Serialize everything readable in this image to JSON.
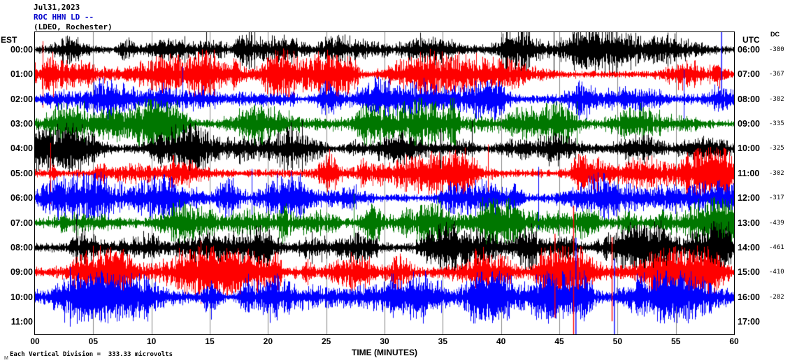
{
  "header": {
    "date": "Jul31,2023",
    "station": "ROC HHN LD --",
    "location": "(LDEO, Rochester)"
  },
  "axes": {
    "left_label": "EST",
    "right_label": "UTC",
    "dc_label": "DC",
    "x_label": "TIME (MINUTES)",
    "x_ticks": [
      "00",
      "05",
      "10",
      "15",
      "20",
      "25",
      "30",
      "35",
      "40",
      "45",
      "50",
      "55",
      "60"
    ]
  },
  "footer": {
    "scale_note": "Each Vertical Division =  333.33 microvolts",
    "corner_mark": "M"
  },
  "colors": {
    "black": "#000000",
    "red": "#ff0000",
    "blue": "#0000ff",
    "green": "#007700",
    "station_text": "#0000cc",
    "grid": "#555555"
  },
  "chart_data": {
    "type": "line",
    "description": "Helicorder seismogram: 11 hourly traces of continuous seismic noise, one row per hour, colors cycling black/red/blue/green",
    "title": "ROC HHN LD -- (LDEO, Rochester) Jul31,2023",
    "xlabel": "TIME (MINUTES)",
    "x_range_minutes": [
      0,
      60
    ],
    "x_tick_step_minutes": 5,
    "vertical_division_microvolts": 333.33,
    "rows": [
      {
        "est": "00:00",
        "utc": "06:00",
        "dc": "-380",
        "color": "black"
      },
      {
        "est": "01:00",
        "utc": "07:00",
        "dc": "-367",
        "color": "red"
      },
      {
        "est": "02:00",
        "utc": "08:00",
        "dc": "-382",
        "color": "blue"
      },
      {
        "est": "03:00",
        "utc": "09:00",
        "dc": "-335",
        "color": "green"
      },
      {
        "est": "04:00",
        "utc": "10:00",
        "dc": "-325",
        "color": "black"
      },
      {
        "est": "05:00",
        "utc": "11:00",
        "dc": "-302",
        "color": "red"
      },
      {
        "est": "06:00",
        "utc": "12:00",
        "dc": "-317",
        "color": "blue"
      },
      {
        "est": "07:00",
        "utc": "13:00",
        "dc": "-439",
        "color": "green"
      },
      {
        "est": "08:00",
        "utc": "14:00",
        "dc": "-461",
        "color": "black"
      },
      {
        "est": "09:00",
        "utc": "15:00",
        "dc": "-410",
        "color": "red"
      },
      {
        "est": "10:00",
        "utc": "16:00",
        "dc": "-282",
        "color": "blue"
      },
      {
        "est": "11:00",
        "utc": "17:00",
        "dc": null,
        "color": null
      }
    ],
    "events": [
      {
        "row": 2,
        "minute": 58.9,
        "up": 145,
        "down": 12
      },
      {
        "row": 4,
        "minute": 34.8,
        "up": 28,
        "down": 28
      },
      {
        "row": 9,
        "minute": 44.6,
        "up": 55,
        "down": 65
      },
      {
        "row": 9,
        "minute": 46.2,
        "up": 95,
        "down": 95
      },
      {
        "row": 9,
        "minute": 49.5,
        "up": 50,
        "down": 70
      },
      {
        "row": 10,
        "minute": 46.4,
        "up": 85,
        "down": 55
      },
      {
        "row": 10,
        "minute": 49.7,
        "up": 55,
        "down": 60
      }
    ]
  }
}
